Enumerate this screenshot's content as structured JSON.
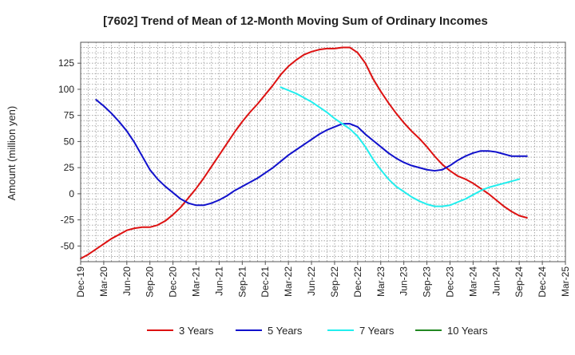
{
  "chart_data": {
    "type": "line",
    "title": "[7602]  Trend of Mean of 12-Month Moving Sum of Ordinary Incomes",
    "xlabel": "",
    "ylabel": "Amount (million yen)",
    "ylim": [
      -65,
      145
    ],
    "y_ticks": [
      125,
      100,
      75,
      50,
      25,
      0,
      -25,
      -50
    ],
    "grid": true,
    "legend_position": "bottom",
    "x_ticks": [
      "Dec-19",
      "Mar-20",
      "Jun-20",
      "Sep-20",
      "Dec-20",
      "Mar-21",
      "Jun-21",
      "Sep-21",
      "Dec-21",
      "Mar-22",
      "Jun-22",
      "Sep-22",
      "Dec-22",
      "Mar-23",
      "Jun-23",
      "Sep-23",
      "Dec-23",
      "Mar-24",
      "Jun-24",
      "Sep-24",
      "Dec-24",
      "Mar-25"
    ],
    "x_range_months": [
      0,
      63
    ],
    "series": [
      {
        "name": "3 Years",
        "color": "#dd1111",
        "points": [
          [
            0,
            -62
          ],
          [
            1,
            -58
          ],
          [
            2,
            -53
          ],
          [
            3,
            -48
          ],
          [
            4,
            -43
          ],
          [
            5,
            -39
          ],
          [
            6,
            -35
          ],
          [
            7,
            -33
          ],
          [
            8,
            -32
          ],
          [
            9,
            -32
          ],
          [
            10,
            -30
          ],
          [
            11,
            -26
          ],
          [
            12,
            -20
          ],
          [
            13,
            -13
          ],
          [
            14,
            -4
          ],
          [
            15,
            5
          ],
          [
            16,
            15
          ],
          [
            17,
            26
          ],
          [
            18,
            37
          ],
          [
            19,
            48
          ],
          [
            20,
            59
          ],
          [
            21,
            69
          ],
          [
            22,
            78
          ],
          [
            23,
            86
          ],
          [
            24,
            95
          ],
          [
            25,
            104
          ],
          [
            26,
            114
          ],
          [
            27,
            122
          ],
          [
            28,
            128
          ],
          [
            29,
            133
          ],
          [
            30,
            136
          ],
          [
            31,
            138
          ],
          [
            32,
            139
          ],
          [
            33,
            139
          ],
          [
            34,
            140
          ],
          [
            35,
            140
          ],
          [
            36,
            135
          ],
          [
            37,
            125
          ],
          [
            38,
            110
          ],
          [
            39,
            98
          ],
          [
            40,
            87
          ],
          [
            41,
            77
          ],
          [
            42,
            68
          ],
          [
            43,
            60
          ],
          [
            44,
            53
          ],
          [
            45,
            45
          ],
          [
            46,
            36
          ],
          [
            47,
            28
          ],
          [
            48,
            22
          ],
          [
            49,
            17
          ],
          [
            50,
            14
          ],
          [
            51,
            10
          ],
          [
            52,
            5
          ],
          [
            53,
            0
          ],
          [
            54,
            -6
          ],
          [
            55,
            -12
          ],
          [
            56,
            -17
          ],
          [
            57,
            -21
          ],
          [
            58,
            -23
          ]
        ]
      },
      {
        "name": "5 Years",
        "color": "#1111cc",
        "points": [
          [
            2,
            90
          ],
          [
            3,
            84
          ],
          [
            4,
            77
          ],
          [
            5,
            69
          ],
          [
            6,
            60
          ],
          [
            7,
            49
          ],
          [
            8,
            36
          ],
          [
            9,
            23
          ],
          [
            10,
            14
          ],
          [
            11,
            7
          ],
          [
            12,
            1
          ],
          [
            13,
            -5
          ],
          [
            14,
            -9
          ],
          [
            15,
            -11
          ],
          [
            16,
            -11
          ],
          [
            17,
            -9
          ],
          [
            18,
            -6
          ],
          [
            19,
            -2
          ],
          [
            20,
            3
          ],
          [
            21,
            7
          ],
          [
            22,
            11
          ],
          [
            23,
            15
          ],
          [
            24,
            20
          ],
          [
            25,
            25
          ],
          [
            26,
            31
          ],
          [
            27,
            37
          ],
          [
            28,
            42
          ],
          [
            29,
            47
          ],
          [
            30,
            52
          ],
          [
            31,
            57
          ],
          [
            32,
            61
          ],
          [
            33,
            64
          ],
          [
            34,
            67
          ],
          [
            35,
            67
          ],
          [
            36,
            64
          ],
          [
            37,
            57
          ],
          [
            38,
            51
          ],
          [
            39,
            45
          ],
          [
            40,
            39
          ],
          [
            41,
            34
          ],
          [
            42,
            30
          ],
          [
            43,
            27
          ],
          [
            44,
            25
          ],
          [
            45,
            23
          ],
          [
            46,
            22
          ],
          [
            47,
            23
          ],
          [
            48,
            27
          ],
          [
            49,
            32
          ],
          [
            50,
            36
          ],
          [
            51,
            39
          ],
          [
            52,
            41
          ],
          [
            53,
            41
          ],
          [
            54,
            40
          ],
          [
            55,
            38
          ],
          [
            56,
            36
          ],
          [
            57,
            36
          ],
          [
            58,
            36
          ]
        ]
      },
      {
        "name": "7 Years",
        "color": "#22eeee",
        "points": [
          [
            26,
            102
          ],
          [
            27,
            99
          ],
          [
            28,
            96
          ],
          [
            29,
            92
          ],
          [
            30,
            88
          ],
          [
            31,
            83
          ],
          [
            32,
            78
          ],
          [
            33,
            72
          ],
          [
            34,
            67
          ],
          [
            35,
            62
          ],
          [
            36,
            55
          ],
          [
            37,
            45
          ],
          [
            38,
            33
          ],
          [
            39,
            23
          ],
          [
            40,
            14
          ],
          [
            41,
            7
          ],
          [
            42,
            2
          ],
          [
            43,
            -3
          ],
          [
            44,
            -7
          ],
          [
            45,
            -10
          ],
          [
            46,
            -12
          ],
          [
            47,
            -12
          ],
          [
            48,
            -11
          ],
          [
            49,
            -8
          ],
          [
            50,
            -5
          ],
          [
            51,
            -1
          ],
          [
            52,
            3
          ],
          [
            53,
            6
          ],
          [
            54,
            8
          ],
          [
            55,
            10
          ],
          [
            56,
            12
          ],
          [
            57,
            14
          ]
        ]
      },
      {
        "name": "10 Years",
        "color": "#228822",
        "points": []
      }
    ]
  }
}
